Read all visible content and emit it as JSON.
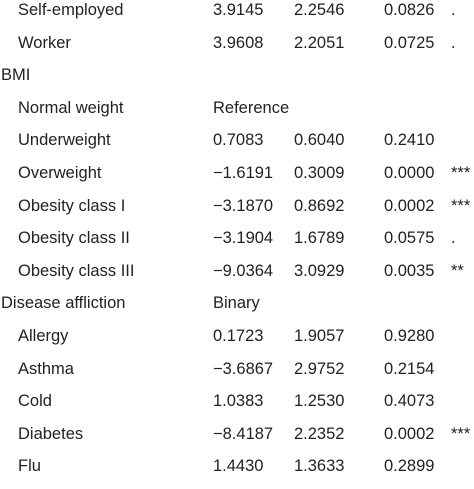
{
  "rows": [
    {
      "label": "Self-employed",
      "section": false,
      "b": "3.9145",
      "se": "2.2546",
      "p": "0.0826",
      "sig": "."
    },
    {
      "label": "Worker",
      "section": false,
      "b": "3.9608",
      "se": "2.2051",
      "p": "0.0725",
      "sig": "."
    },
    {
      "label": "BMI",
      "section": true,
      "b": "",
      "se": "",
      "p": "",
      "sig": ""
    },
    {
      "label": "Normal weight",
      "section": false,
      "b": "Reference",
      "se": "",
      "p": "",
      "sig": ""
    },
    {
      "label": "Underweight",
      "section": false,
      "b": "0.7083",
      "se": "0.6040",
      "p": "0.2410",
      "sig": ""
    },
    {
      "label": "Overweight",
      "section": false,
      "b": "−1.6191",
      "se": "0.3009",
      "p": "0.0000",
      "sig": "***"
    },
    {
      "label": "Obesity class I",
      "section": false,
      "b": "−3.1870",
      "se": "0.8692",
      "p": "0.0002",
      "sig": "***"
    },
    {
      "label": "Obesity class II",
      "section": false,
      "b": "−3.1904",
      "se": "1.6789",
      "p": "0.0575",
      "sig": "."
    },
    {
      "label": "Obesity class III",
      "section": false,
      "b": "−9.0364",
      "se": "3.0929",
      "p": "0.0035",
      "sig": "**"
    },
    {
      "label": "Disease affliction",
      "section": true,
      "b": "Binary",
      "se": "",
      "p": "",
      "sig": ""
    },
    {
      "label": "Allergy",
      "section": false,
      "b": "0.1723",
      "se": "1.9057",
      "p": "0.9280",
      "sig": ""
    },
    {
      "label": "Asthma",
      "section": false,
      "b": "−3.6867",
      "se": "2.9752",
      "p": "0.2154",
      "sig": ""
    },
    {
      "label": "Cold",
      "section": false,
      "b": "1.0383",
      "se": "1.2530",
      "p": "0.4073",
      "sig": ""
    },
    {
      "label": "Diabetes",
      "section": false,
      "b": "−8.4187",
      "se": "2.2352",
      "p": "0.0002",
      "sig": "***"
    },
    {
      "label": "Flu",
      "section": false,
      "b": "1.4430",
      "se": "1.3633",
      "p": "0.2899",
      "sig": ""
    }
  ]
}
